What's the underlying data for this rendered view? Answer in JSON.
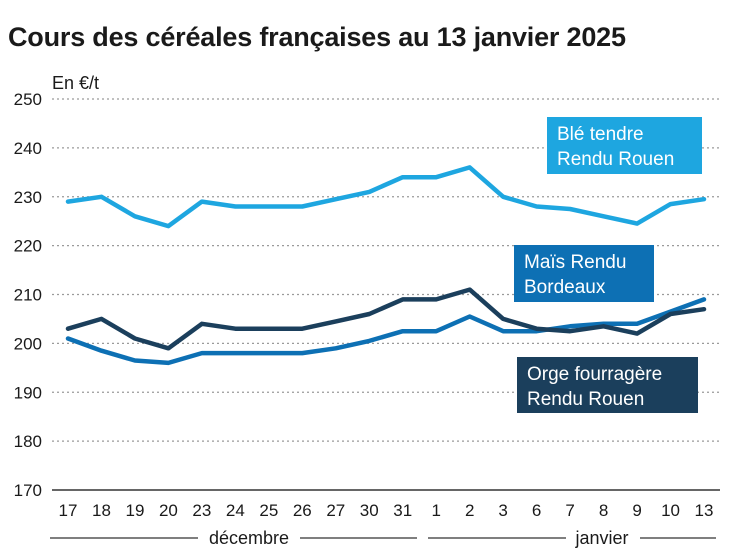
{
  "chart_data": {
    "type": "line",
    "title": "Cours des céréales françaises au 13 janvier 2025",
    "ylabel": "En €/t",
    "ylim": [
      170,
      250
    ],
    "yticks": [
      170,
      180,
      190,
      200,
      210,
      220,
      230,
      240,
      250
    ],
    "grid": true,
    "categories": [
      "17",
      "18",
      "19",
      "20",
      "23",
      "24",
      "25",
      "26",
      "27",
      "30",
      "31",
      "1",
      "2",
      "3",
      "6",
      "7",
      "8",
      "9",
      "10",
      "13"
    ],
    "groups": [
      {
        "label": "décembre",
        "from": 0,
        "to": 10
      },
      {
        "label": "janvier",
        "from": 11,
        "to": 19
      }
    ],
    "series": [
      {
        "name": "Blé tendre Rendu Rouen",
        "lines": [
          "Blé tendre",
          "Rendu Rouen"
        ],
        "color": "#1ea6e0",
        "values": [
          229,
          230,
          226,
          224,
          229,
          228,
          228,
          228,
          229.5,
          231,
          234,
          234,
          236,
          230,
          228,
          227.5,
          226,
          224.5,
          228.5,
          229.5
        ]
      },
      {
        "name": "Maïs Rendu Bordeaux",
        "lines": [
          "Maïs Rendu",
          "Bordeaux"
        ],
        "color": "#0d70b4",
        "values": [
          201,
          198.5,
          196.5,
          196,
          198,
          198,
          198,
          198,
          199,
          200.5,
          202.5,
          202.5,
          205.5,
          202.5,
          202.5,
          203.5,
          204,
          204,
          206.5,
          209
        ]
      },
      {
        "name": "Orge fourragère Rendu Rouen",
        "lines": [
          "Orge fourragère",
          "Rendu Rouen"
        ],
        "color": "#1b3f5c",
        "values": [
          203,
          205,
          201,
          199,
          204,
          203,
          203,
          203,
          204.5,
          206,
          209,
          209,
          211,
          205,
          203,
          202.5,
          203.5,
          202,
          206,
          207
        ]
      }
    ]
  }
}
